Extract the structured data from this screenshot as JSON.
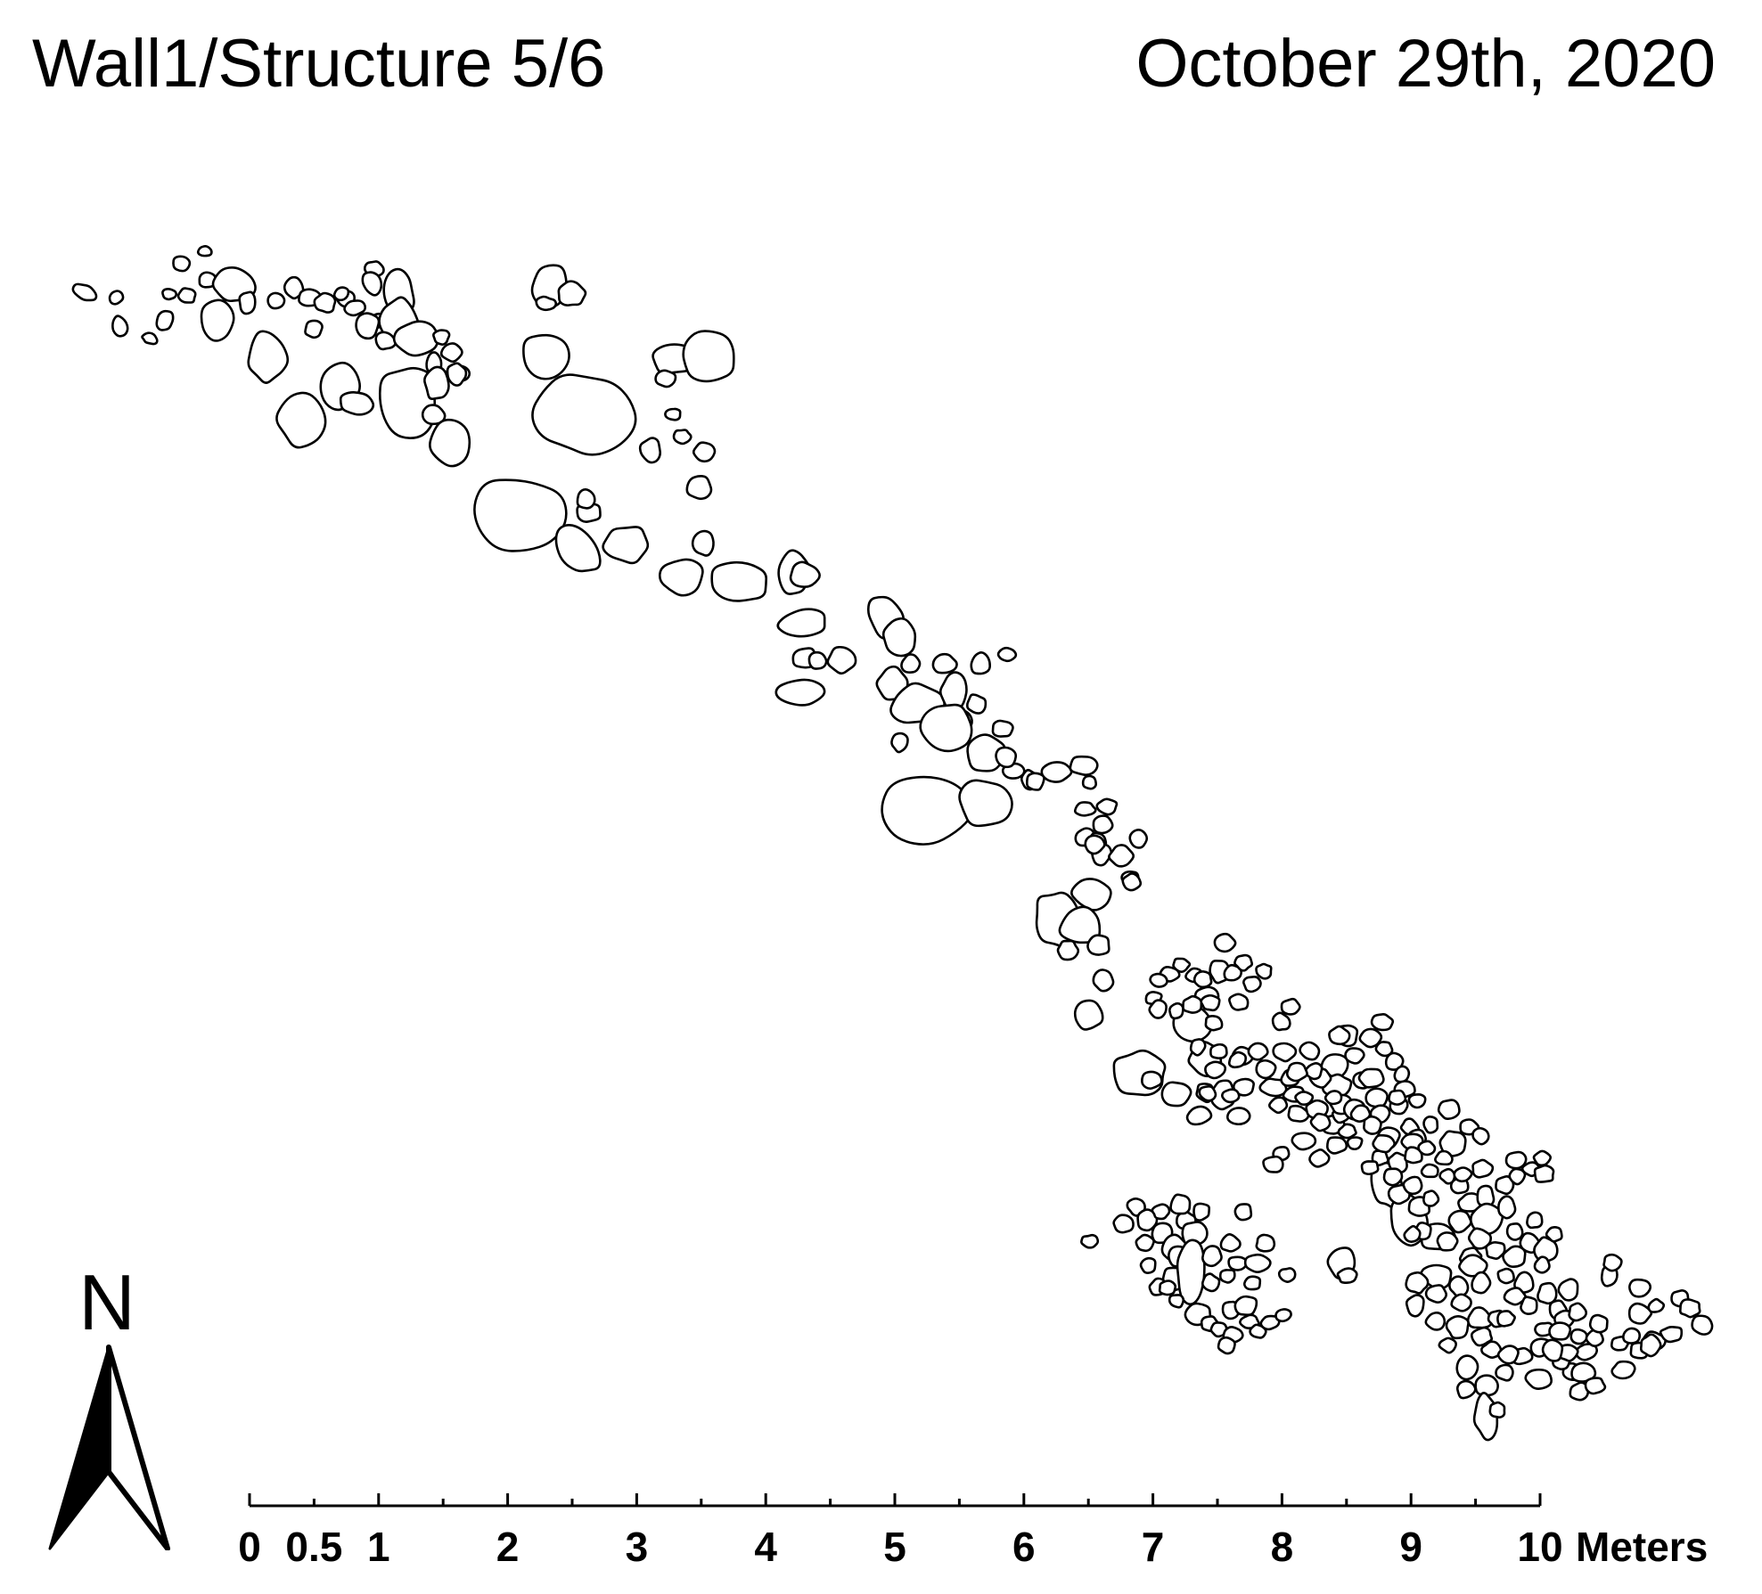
{
  "header": {
    "title": "Wall1/Structure 5/6",
    "date": "October 29th, 2020"
  },
  "north_arrow": {
    "label": "N",
    "icon": "north-arrow-icon"
  },
  "scale_bar": {
    "unit_label": "Meters",
    "tick_labels": [
      "0",
      "0.5",
      "1",
      "2",
      "3",
      "4",
      "5",
      "6",
      "7",
      "8",
      "9",
      "10"
    ],
    "tick_values": [
      0,
      0.5,
      1,
      2,
      3,
      4,
      5,
      6,
      7,
      8,
      9,
      10
    ],
    "max_value": 10
  },
  "colors": {
    "stroke": "#000000",
    "fill": "#ffffff",
    "background": "#ffffff"
  }
}
